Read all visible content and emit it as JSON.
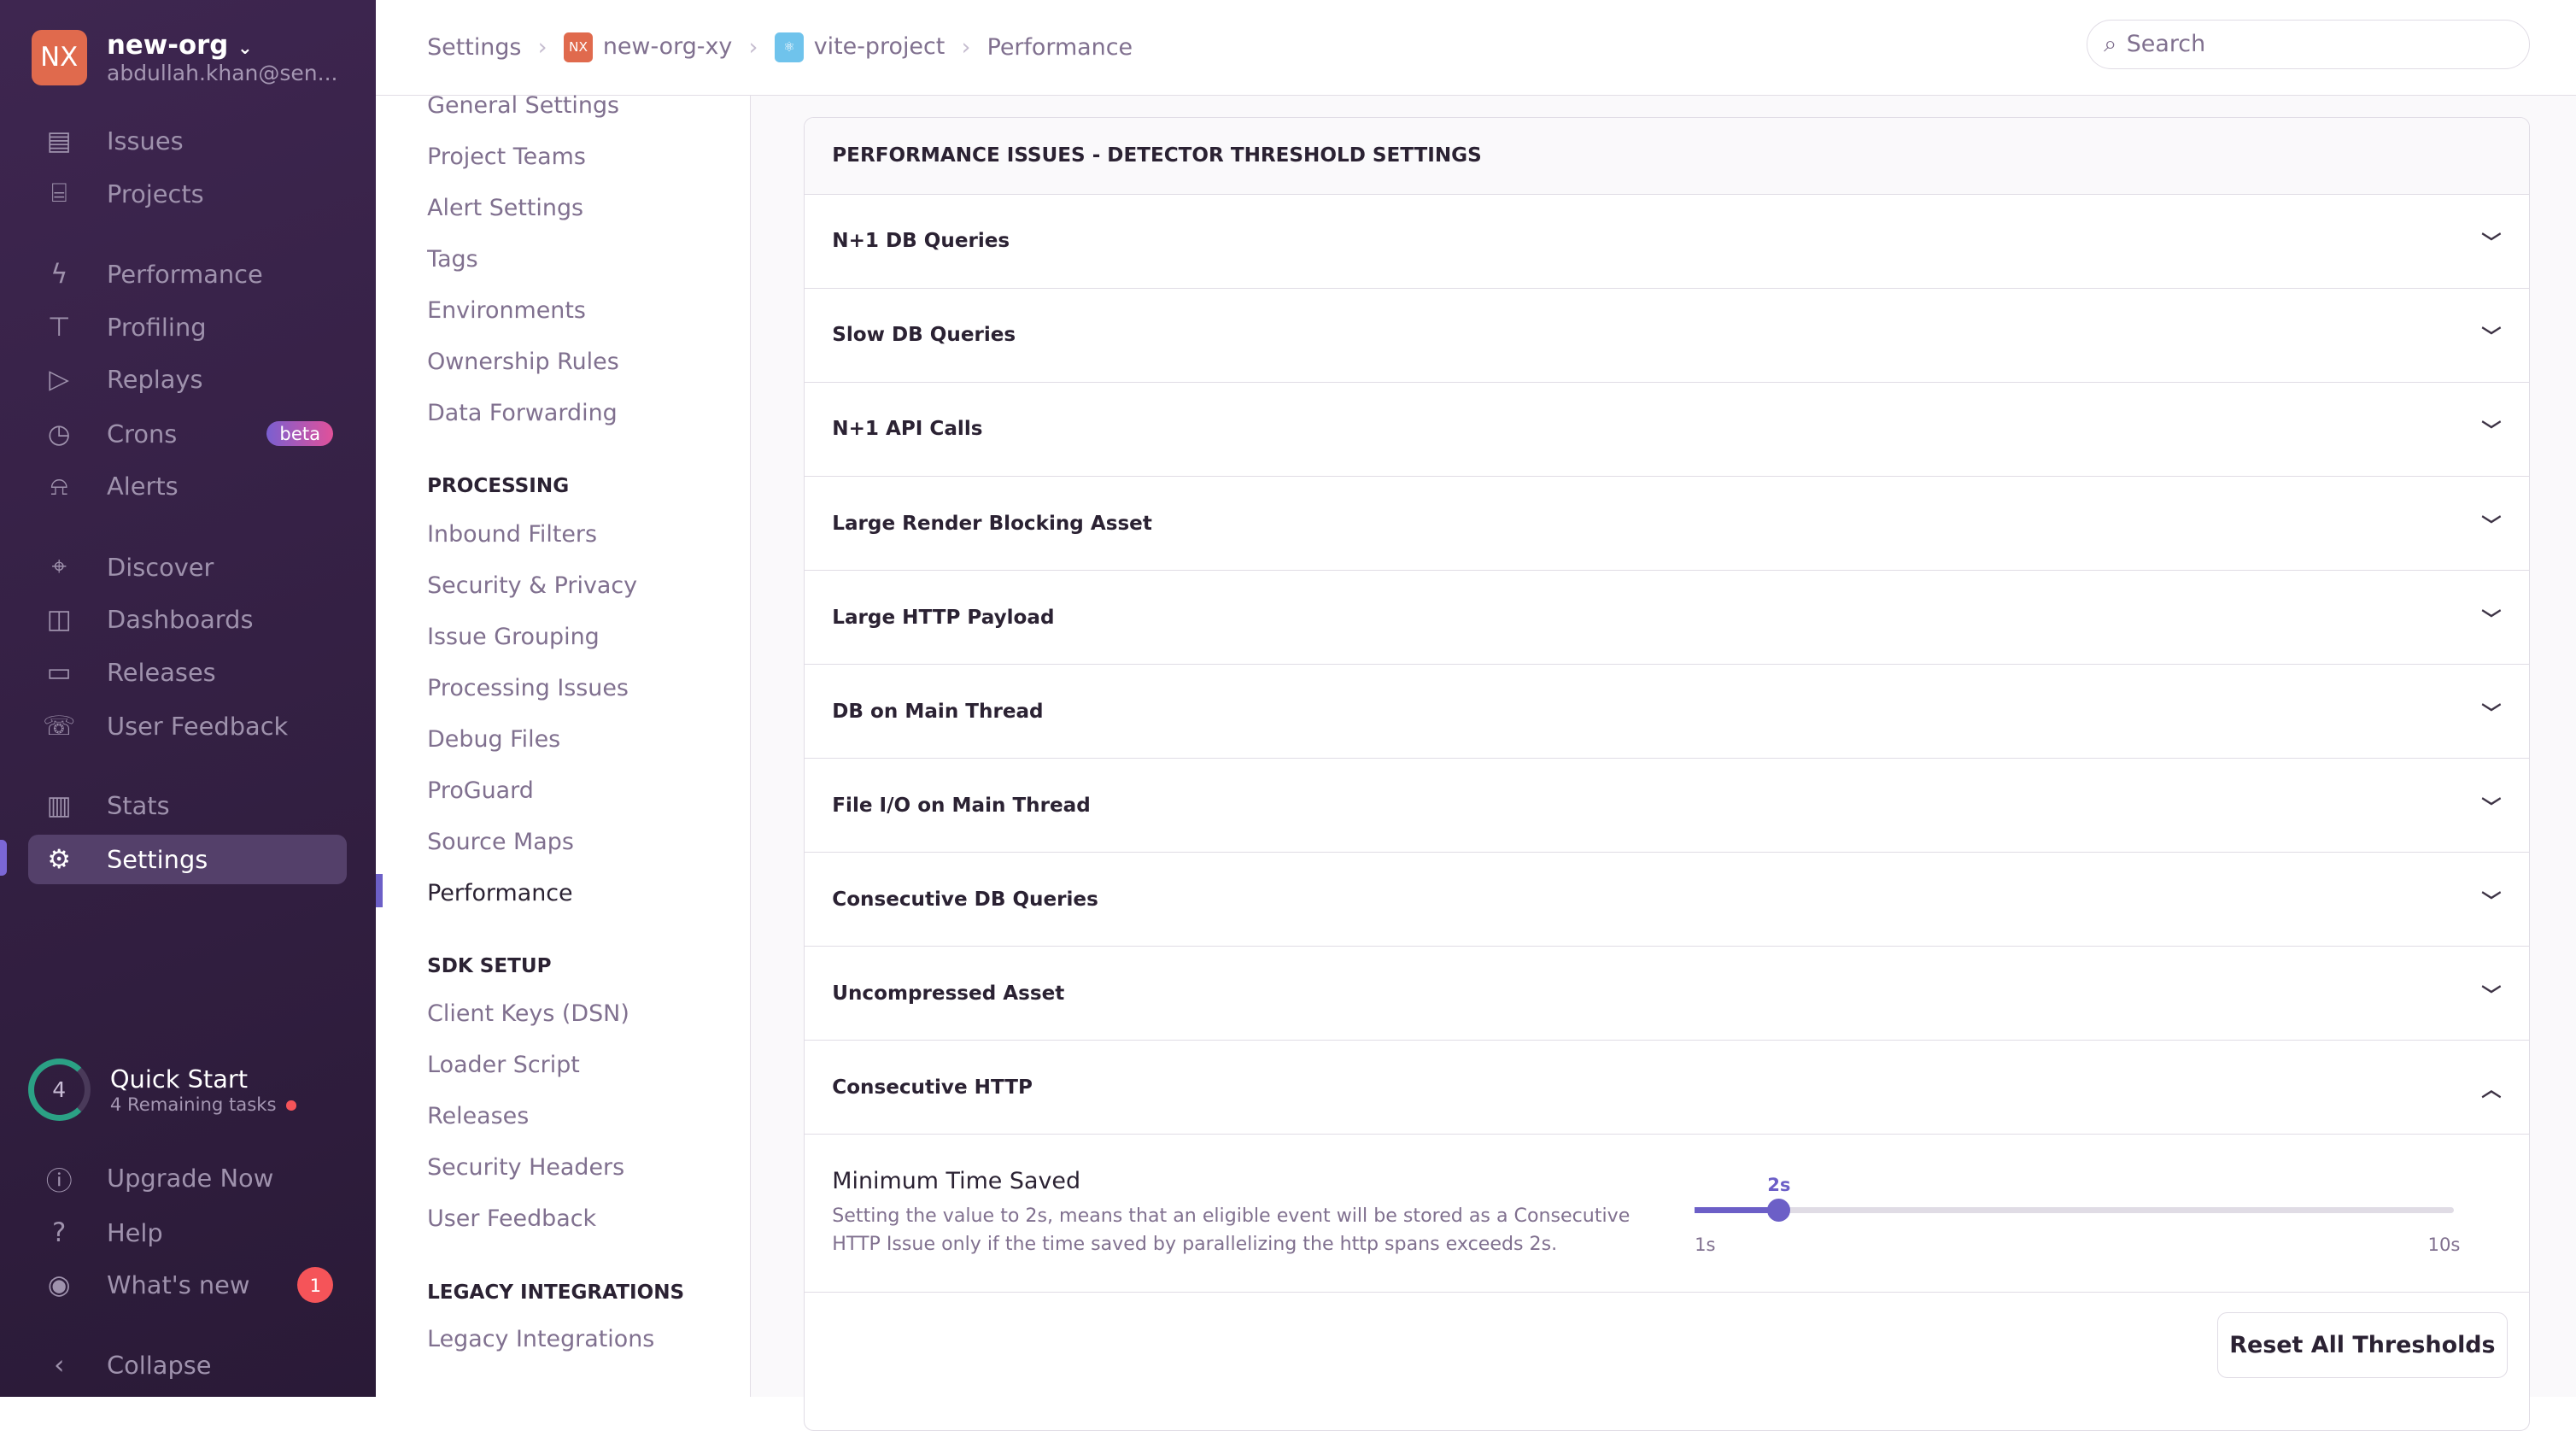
{
  "org": {
    "initials": "NX",
    "name": "new-org",
    "email": "abdullah.khan@sen..."
  },
  "nav": {
    "issues": "Issues",
    "projects": "Projects",
    "performance": "Performance",
    "profiling": "Profiling",
    "replays": "Replays",
    "crons": "Crons",
    "crons_badge": "beta",
    "alerts": "Alerts",
    "discover": "Discover",
    "dashboards": "Dashboards",
    "releases": "Releases",
    "user_feedback": "User Feedback",
    "stats": "Stats",
    "settings": "Settings",
    "upgrade": "Upgrade Now",
    "help": "Help",
    "whats_new": "What's new",
    "whats_new_count": "1",
    "collapse": "Collapse"
  },
  "quick_start": {
    "count": "4",
    "title": "Quick Start",
    "subtitle": "4 Remaining tasks"
  },
  "breadcrumb": {
    "settings": "Settings",
    "org": "new-org-xy",
    "org_icon": "NX",
    "project": "vite-project",
    "page": "Performance"
  },
  "search": {
    "placeholder": "Search"
  },
  "subnav": {
    "items1": [
      "General Settings",
      "Project Teams",
      "Alert Settings",
      "Tags",
      "Environments",
      "Ownership Rules",
      "Data Forwarding"
    ],
    "processing_head": "PROCESSING",
    "processing": [
      "Inbound Filters",
      "Security & Privacy",
      "Issue Grouping",
      "Processing Issues",
      "Debug Files",
      "ProGuard",
      "Source Maps",
      "Performance"
    ],
    "sdk_head": "SDK SETUP",
    "sdk": [
      "Client Keys (DSN)",
      "Loader Script",
      "Releases",
      "Security Headers",
      "User Feedback"
    ],
    "legacy_head": "LEGACY INTEGRATIONS",
    "legacy": [
      "Legacy Integrations"
    ]
  },
  "panel": {
    "title": "PERFORMANCE ISSUES - DETECTOR THRESHOLD SETTINGS",
    "rows": [
      "N+1 DB Queries",
      "Slow DB Queries",
      "N+1 API Calls",
      "Large Render Blocking Asset",
      "Large HTTP Payload",
      "DB on Main Thread",
      "File I/O on Main Thread",
      "Consecutive DB Queries",
      "Uncompressed Asset",
      "Consecutive HTTP"
    ],
    "expanded": {
      "title": "Minimum Time Saved",
      "description": "Setting the value to 2s, means that an eligible event will be stored as a Consecutive HTTP Issue only if the time saved by parallelizing the http spans exceeds 2s.",
      "slider": {
        "value_label": "2s",
        "value": 2,
        "min": 1,
        "max": 10,
        "min_label": "1s",
        "max_label": "10s"
      }
    },
    "reset": "Reset All Thresholds"
  },
  "colors": {
    "accent": "#6c5fc7",
    "sidebar": "#3e2650",
    "org_badge": "#e06a4d",
    "project_icon": "#6fc3ec"
  }
}
